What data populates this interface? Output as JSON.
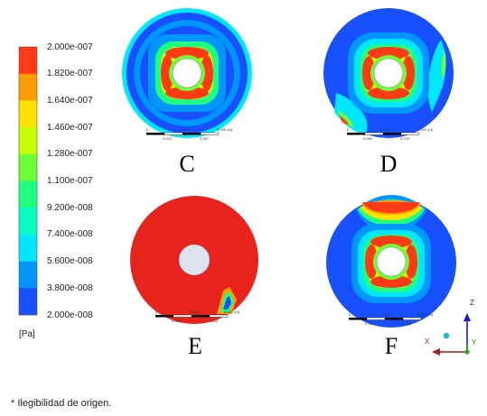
{
  "legend": {
    "unit": "[Pa]",
    "ticks": [
      "2.000e-007",
      "1.820e-007",
      "1.640e-007",
      "1.460e-007",
      "1.280e-007",
      "1.100e-007",
      "9.200e-008",
      "7.400e-008",
      "5.600e-008",
      "3.800e-008",
      "2.000e-008"
    ],
    "colors": [
      "#ff3a14",
      "#ff9d00",
      "#ffe100",
      "#c8ff00",
      "#6cff36",
      "#1fff80",
      "#00ffc0",
      "#00e8ff",
      "#0096ff",
      "#1850ff"
    ]
  },
  "panels": [
    {
      "id": "C",
      "label": "C",
      "scale_ticks": [
        "0",
        "0.045",
        "0.090 (m)",
        "0.067",
        "0.022"
      ]
    },
    {
      "id": "D",
      "label": "D",
      "scale_ticks": [
        "0",
        "0.050",
        "0.200 (m)",
        "0.150",
        "0.050"
      ]
    },
    {
      "id": "E",
      "label": "E",
      "scale_ticks": [
        "0",
        "0.050",
        "0.220 (m)",
        "0.150",
        "0.050"
      ]
    },
    {
      "id": "F",
      "label": "F",
      "scale_ticks": [
        "0",
        "0.050",
        "0.200 (m)",
        "0.150",
        "0.050"
      ]
    }
  ],
  "axes": {
    "x": "X",
    "y": "Y",
    "z": "Z"
  },
  "footnote": "* Ilegibilidad de origen."
}
